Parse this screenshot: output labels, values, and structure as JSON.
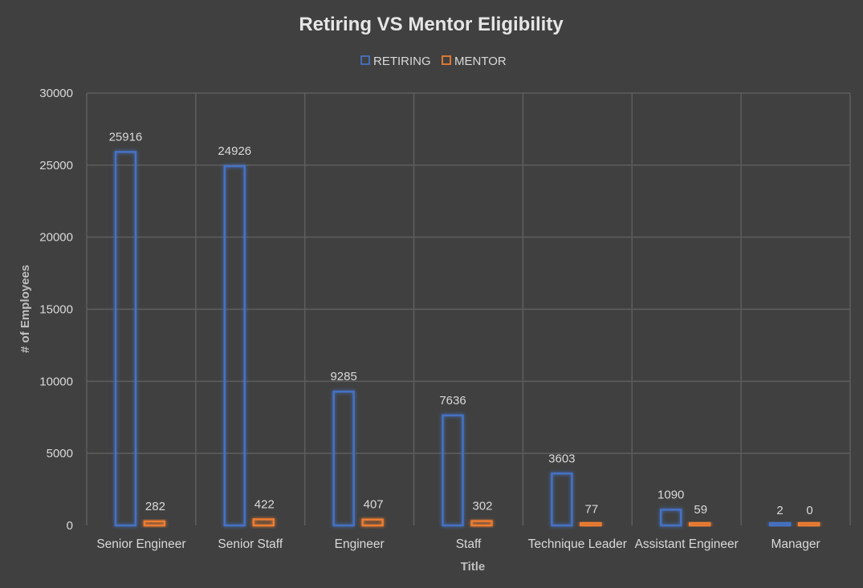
{
  "chart_data": {
    "type": "bar",
    "title": "Retiring VS Mentor Eligibility",
    "xlabel": "Title",
    "ylabel": "# of Employees",
    "categories": [
      "Senior Engineer",
      "Senior Staff",
      "Engineer",
      "Staff",
      "Technique Leader",
      "Assistant Engineer",
      "Manager"
    ],
    "series": [
      {
        "name": "RETIRING",
        "color": "#4472C4",
        "values": [
          25916,
          24926,
          9285,
          7636,
          3603,
          1090,
          2
        ]
      },
      {
        "name": "MENTOR",
        "color": "#ED7D31",
        "values": [
          282,
          422,
          407,
          302,
          77,
          59,
          0
        ]
      }
    ],
    "ylim": [
      0,
      30000
    ],
    "yticks": [
      0,
      5000,
      10000,
      15000,
      20000,
      25000,
      30000
    ],
    "grid": true,
    "legend_position": "top-center",
    "data_labels": true
  }
}
